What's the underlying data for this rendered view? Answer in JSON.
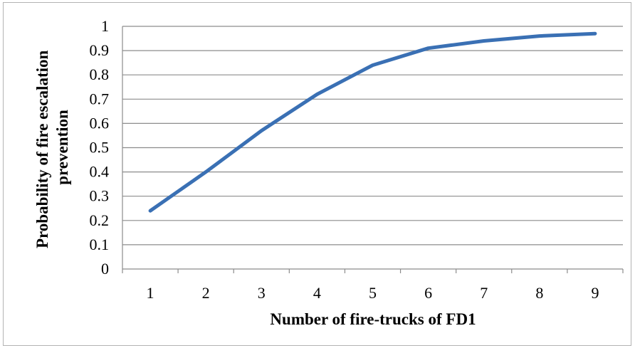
{
  "chart_data": {
    "type": "line",
    "title": "",
    "xlabel": "Number of fire-trucks of FD1",
    "ylabel_lines": [
      "Probability of fire escalation",
      "prevention"
    ],
    "x": [
      1,
      2,
      3,
      4,
      5,
      6,
      7,
      8,
      9
    ],
    "categories": [
      "1",
      "2",
      "3",
      "4",
      "5",
      "6",
      "7",
      "8",
      "9"
    ],
    "series": [
      {
        "values": [
          0.24,
          0.4,
          0.57,
          0.72,
          0.84,
          0.91,
          0.94,
          0.96,
          0.97
        ],
        "color": "#3a70b4"
      }
    ],
    "ylim": [
      0,
      1
    ],
    "yticks": [
      "0",
      "0.1",
      "0.2",
      "0.3",
      "0.4",
      "0.5",
      "0.6",
      "0.7",
      "0.8",
      "0.9",
      "1"
    ],
    "grid": true,
    "legend": "none",
    "gridline_color": "#8c8c8c",
    "frame_color": "#b3b3b3"
  }
}
